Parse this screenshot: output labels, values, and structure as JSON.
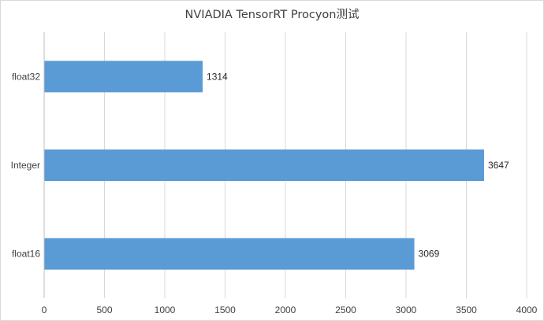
{
  "chart_data": {
    "type": "bar",
    "orientation": "horizontal",
    "title": "NVIADIA TensorRT Procyon测试",
    "categories": [
      "float32",
      "Integer",
      "float16"
    ],
    "values": [
      1314,
      3647,
      3069
    ],
    "data_labels": [
      "1314",
      "3647",
      "3069"
    ],
    "xlim": [
      0,
      4000
    ],
    "x_ticks": [
      "0",
      "500",
      "1000",
      "1500",
      "2000",
      "2500",
      "3000",
      "3500",
      "4000"
    ],
    "xlabel": "",
    "ylabel": "",
    "gridlines": "vertical",
    "legend": "none",
    "bar_color": "#5b9bd5",
    "gridline_color": "#d9d9d9",
    "axis_color": "#bfbfbf"
  }
}
